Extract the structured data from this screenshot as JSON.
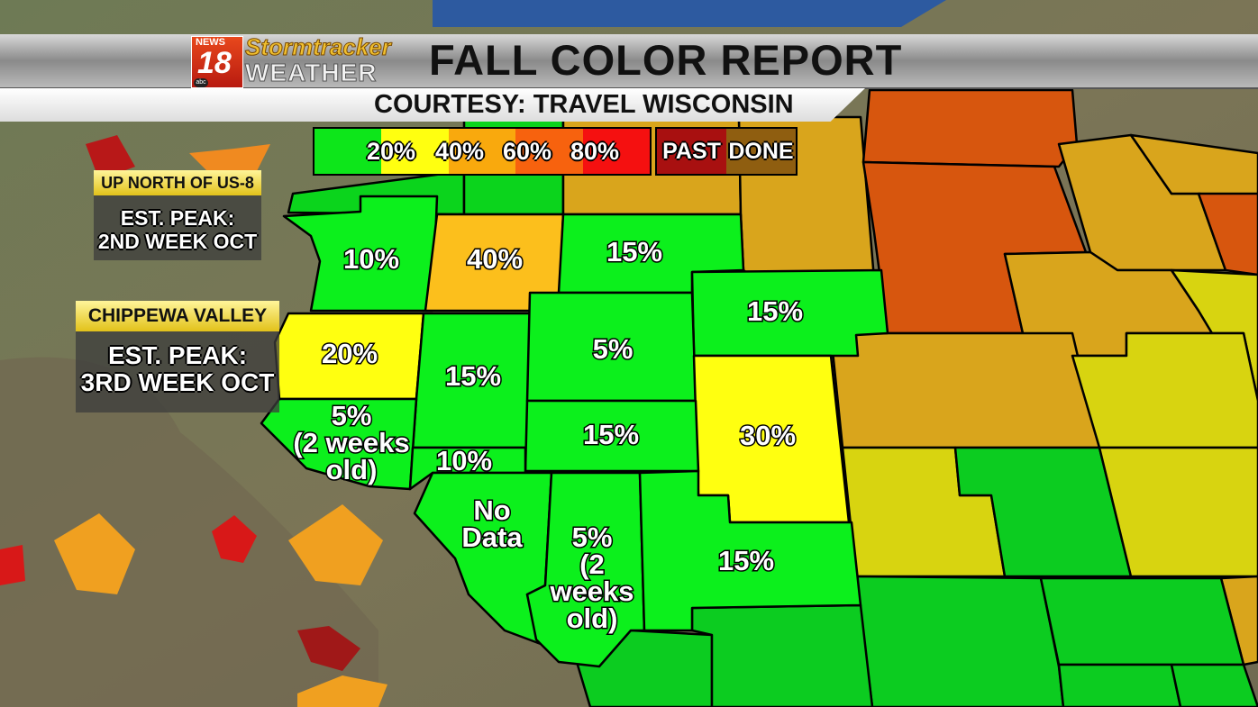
{
  "header": {
    "logo": {
      "news": "NEWS",
      "number": "18",
      "network": "abc",
      "line1": "Stormtracker",
      "line2": "WEATHER"
    },
    "title": "FALL COLOR REPORT",
    "subtitle": "COURTESY: TRAVEL WISCONSIN"
  },
  "legend": {
    "scale": [
      {
        "color": "#0de61a"
      },
      {
        "label": "20%",
        "color": "#ffff10"
      },
      {
        "label": "40%",
        "color": "#f9a90d"
      },
      {
        "label": "60%",
        "color": "#f7620e"
      },
      {
        "label": "80%",
        "color": "#f51010"
      }
    ],
    "past": {
      "label": "PAST",
      "color": "#a81010"
    },
    "done": {
      "label": "DONE",
      "color": "#8f5e10"
    }
  },
  "info_boxes": [
    {
      "heading": "UP NORTH OF US-8",
      "line1": "EST. PEAK:",
      "line2": "2ND WEEK OCT"
    },
    {
      "heading": "CHIPPEWA VALLEY",
      "line1": "EST. PEAK:",
      "line2": "3RD WEEK OCT"
    }
  ],
  "regions": [
    {
      "label": "10%",
      "color": "#0cf01c"
    },
    {
      "label": "40%",
      "color": "#fcbf1c"
    },
    {
      "label": "15%",
      "color": "#0cf01c"
    },
    {
      "label": "15%",
      "color": "#0cf01c"
    },
    {
      "label": "20%",
      "color": "#ffff10"
    },
    {
      "label": "15%",
      "color": "#0cf01c"
    },
    {
      "label": "5%",
      "color": "#0cf01c"
    },
    {
      "label": "30%",
      "color": "#ffff10"
    },
    {
      "label": "15%",
      "color": "#0cf01c"
    },
    {
      "label": [
        "5%",
        "(2 weeks",
        "old)"
      ],
      "color": "#0cf01c"
    },
    {
      "label": "10%",
      "color": "#0cf01c"
    },
    {
      "label": [
        "No",
        "Data"
      ],
      "color": "#0cf01c"
    },
    {
      "label": [
        "5%",
        "(2",
        "weeks",
        "old)"
      ],
      "color": "#0cf01c"
    },
    {
      "label": "15%",
      "color": "#0cf01c"
    }
  ]
}
